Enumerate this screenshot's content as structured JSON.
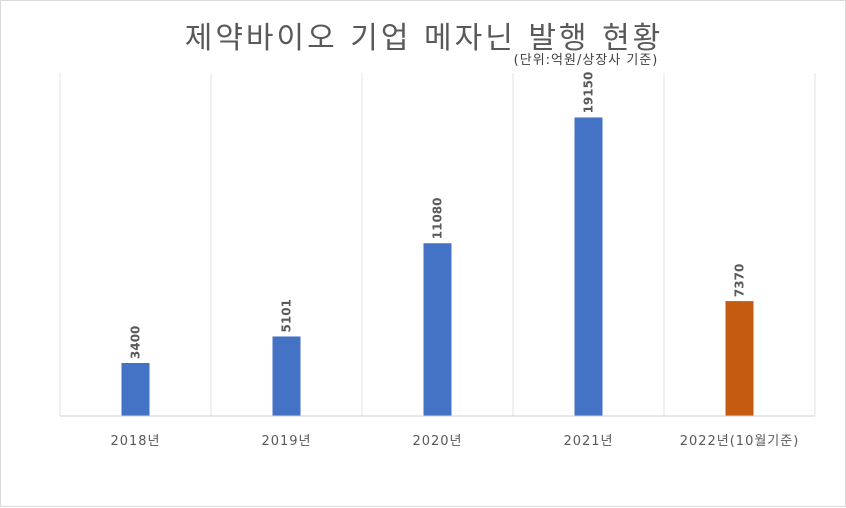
{
  "chart_data": {
    "type": "bar",
    "title": "제약바이오 기업 메자닌 발행 현황",
    "subtitle": "(단위:억원/상장사 기준)",
    "categories": [
      "2018년",
      "2019년",
      "2020년",
      "2021년",
      "2022년(10월기준)"
    ],
    "values": [
      3400,
      5101,
      11080,
      19150,
      7370
    ],
    "colors": [
      "#4472c4",
      "#4472c4",
      "#4472c4",
      "#4472c4",
      "#c55a11"
    ],
    "ylim": [
      0,
      22000
    ],
    "grid": "vertical",
    "legend": "none",
    "data_labels": [
      "3400",
      "5101",
      "11080",
      "19150",
      "7370"
    ]
  }
}
